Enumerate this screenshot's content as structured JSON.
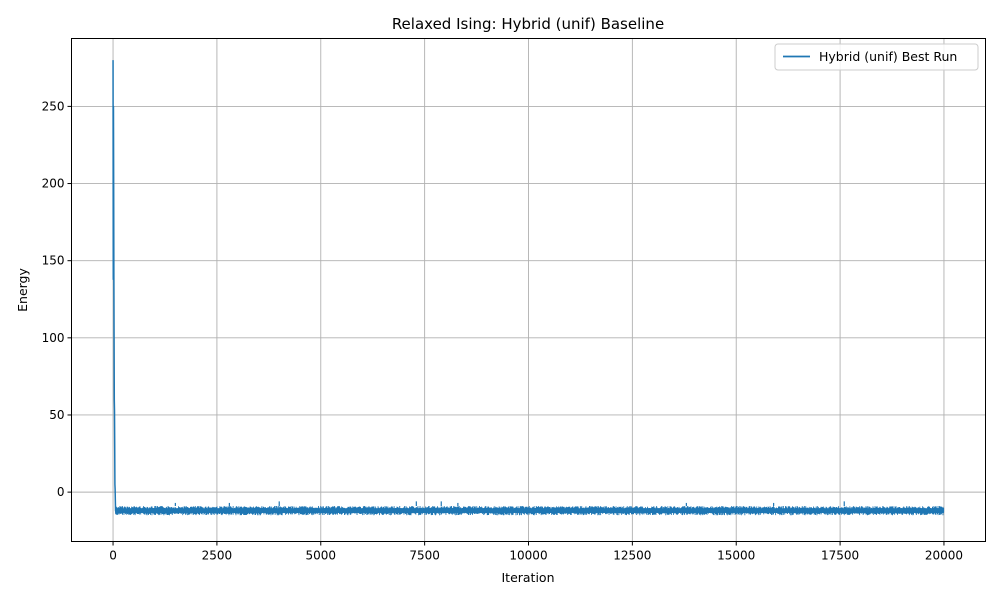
{
  "chart_data": {
    "type": "line",
    "title": "Relaxed Ising: Hybrid (unif) Baseline",
    "xlabel": "Iteration",
    "ylabel": "Energy",
    "xlim": [
      -1000,
      21000
    ],
    "ylim": [
      -32,
      294
    ],
    "xticks": [
      0,
      2500,
      5000,
      7500,
      10000,
      12500,
      15000,
      17500,
      20000
    ],
    "yticks": [
      0,
      50,
      100,
      150,
      200,
      250
    ],
    "grid": true,
    "legend": {
      "position": "top-right",
      "entries": [
        "Hybrid (unif) Best Run"
      ]
    },
    "series": [
      {
        "name": "Hybrid (unif) Best Run",
        "color": "#1f77b4",
        "x": [
          0,
          5,
          10,
          15,
          20,
          25,
          30,
          35,
          40,
          45,
          50,
          55,
          60,
          70,
          80,
          100,
          200,
          500,
          1000,
          2000,
          3000,
          4000,
          5000,
          6000,
          7000,
          8000,
          9000,
          10000,
          11000,
          12000,
          13000,
          14000,
          15000,
          16000,
          17000,
          17500,
          18000,
          19000,
          20000
        ],
        "y": [
          280,
          138,
          250,
          200,
          139,
          100,
          60,
          53,
          30,
          5,
          2,
          -5,
          -12,
          -13,
          -11,
          -12,
          -12,
          -12,
          -11,
          -12,
          -11,
          -11,
          -12,
          -11,
          -11,
          -11,
          -12,
          -11,
          -12,
          -11,
          -12,
          -12,
          -12,
          -11,
          -12,
          -11,
          -12,
          -12,
          -12
        ],
        "band": {
          "x_from": 60,
          "x_to": 20000,
          "lower": -15,
          "upper": -9,
          "peaks": [
            {
              "x": 1500,
              "y": -7
            },
            {
              "x": 2800,
              "y": -7
            },
            {
              "x": 4000,
              "y": -6
            },
            {
              "x": 7300,
              "y": -6
            },
            {
              "x": 7900,
              "y": -6
            },
            {
              "x": 8300,
              "y": -7
            },
            {
              "x": 13800,
              "y": -7
            },
            {
              "x": 15900,
              "y": -7
            },
            {
              "x": 17600,
              "y": -6
            }
          ]
        }
      }
    ]
  }
}
